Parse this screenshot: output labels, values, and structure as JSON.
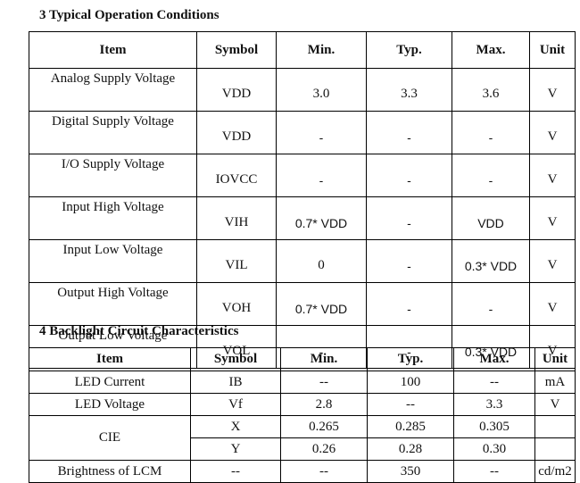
{
  "section3": {
    "title": "3 Typical Operation Conditions",
    "headers": [
      "Item",
      "Symbol",
      "Min.",
      "Typ.",
      "Max.",
      "Unit"
    ],
    "rows": [
      [
        "Analog Supply Voltage",
        "VDD",
        "3.0",
        "3.3",
        "3.6",
        "V"
      ],
      [
        "Digital Supply Voltage",
        "VDD",
        "-",
        "-",
        "-",
        "V"
      ],
      [
        "I/O Supply Voltage",
        "IOVCC",
        "-",
        "-",
        "-",
        "V"
      ],
      [
        "Input High Voltage",
        "VIH",
        "0.7* VDD",
        "-",
        "VDD",
        "V"
      ],
      [
        "Input Low Voltage",
        "VIL",
        "0",
        "-",
        "0.3* VDD",
        "V"
      ],
      [
        "Output High Voltage",
        "VOH",
        "0.7* VDD",
        "-",
        "-",
        "V"
      ],
      [
        "Output Low Voltage",
        "VOL",
        "-",
        "-",
        "0.3* VDD",
        "V"
      ]
    ]
  },
  "section4": {
    "title": "4 Backlight Circuit Characteristics",
    "headers": [
      "Item",
      "Symbol",
      "Min.",
      "Typ.",
      "Max.",
      "Unit"
    ],
    "rows": [
      [
        "LED Current",
        "IB",
        "--",
        "100",
        "--",
        "mA"
      ],
      [
        "LED Voltage",
        "Vf",
        "2.8",
        "--",
        "3.3",
        "V"
      ],
      [
        "CIE",
        "X",
        "0.265",
        "0.285",
        "0.305",
        ""
      ],
      [
        "",
        "Y",
        "0.26",
        "0.28",
        "0.30",
        ""
      ],
      [
        "Brightness of LCM",
        "--",
        "--",
        "350",
        "--",
        "cd/m2"
      ]
    ]
  }
}
